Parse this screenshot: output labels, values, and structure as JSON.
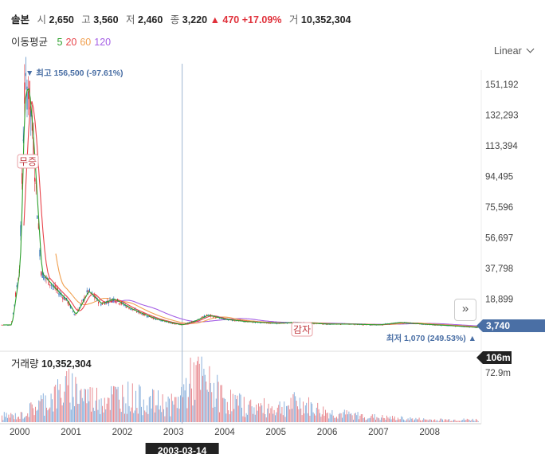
{
  "header": {
    "name": "솔본",
    "open_label": "시",
    "open": "2,650",
    "high_label": "고",
    "high": "3,560",
    "low_label": "저",
    "low": "2,460",
    "close_label": "종",
    "close": "3,220",
    "change": "▲ 470 +17.09%",
    "volume_label": "거",
    "volume": "10,352,304"
  },
  "moving_average": {
    "label": "이동평균",
    "periods": [
      {
        "label": "5",
        "color": "#2ca02c"
      },
      {
        "label": "20",
        "color": "#e8434a"
      },
      {
        "label": "60",
        "color": "#f0a050"
      },
      {
        "label": "120",
        "color": "#a45ee5"
      }
    ]
  },
  "scale_selector": "Linear",
  "annotations": {
    "max_label": "▼ 최고 156,500 (-97.61%)",
    "min_label": "최저 1,070 (249.53%) ▲",
    "event1": "무증",
    "event2": "감자",
    "current_price": "3,740",
    "current_volume": "106m",
    "crosshair_date": "2003-03-14"
  },
  "volume_panel": {
    "title": "거래량",
    "value": "10,352,304",
    "tick": "72.9m"
  },
  "chart_data": {
    "type": "line",
    "title": "",
    "xlabel": "",
    "ylabel": "",
    "x": [
      "1999-11",
      "2000-01",
      "2000-02",
      "2000-03",
      "2000-04",
      "2000-06",
      "2000-09",
      "2000-12",
      "2001-02",
      "2001-05",
      "2001-08",
      "2001-11",
      "2002-03",
      "2002-06",
      "2002-09",
      "2002-12",
      "2003-03",
      "2003-06",
      "2003-09",
      "2004-01",
      "2004-06",
      "2005-01",
      "2005-06",
      "2006-01",
      "2006-06",
      "2007-01",
      "2007-06",
      "2008-01",
      "2008-06",
      "2008-12"
    ],
    "series": [
      {
        "values": [
          3000,
          40000,
          145000,
          150000,
          120000,
          35000,
          26000,
          18000,
          9000,
          24000,
          16000,
          19000,
          13000,
          9500,
          6500,
          4500,
          3000,
          5500,
          9000,
          6500,
          5000,
          4000,
          4500,
          3500,
          3500,
          3000,
          4500,
          3200,
          2500,
          1500
        ],
        "color": "#2a6fb3"
      }
    ],
    "y_ticks": [
      "151,192",
      "132,293",
      "113,394",
      "94,495",
      "75,596",
      "56,697",
      "37,798",
      "18,899"
    ],
    "x_ticks": [
      "2000",
      "2001",
      "2002",
      "2003",
      "2004",
      "2005",
      "2006",
      "2007",
      "2008"
    ],
    "ylim": [
      0,
      160000
    ],
    "grid": false,
    "volume": {
      "x": [
        "2000",
        "2000-06",
        "2001",
        "2001-06",
        "2002",
        "2002-06",
        "2003",
        "2003-06",
        "2004",
        "2004-06",
        "2005",
        "2005-06",
        "2006",
        "2007",
        "2008"
      ],
      "values": [
        8,
        25,
        45,
        30,
        35,
        28,
        22,
        60,
        30,
        20,
        18,
        25,
        12,
        6,
        3
      ]
    }
  }
}
